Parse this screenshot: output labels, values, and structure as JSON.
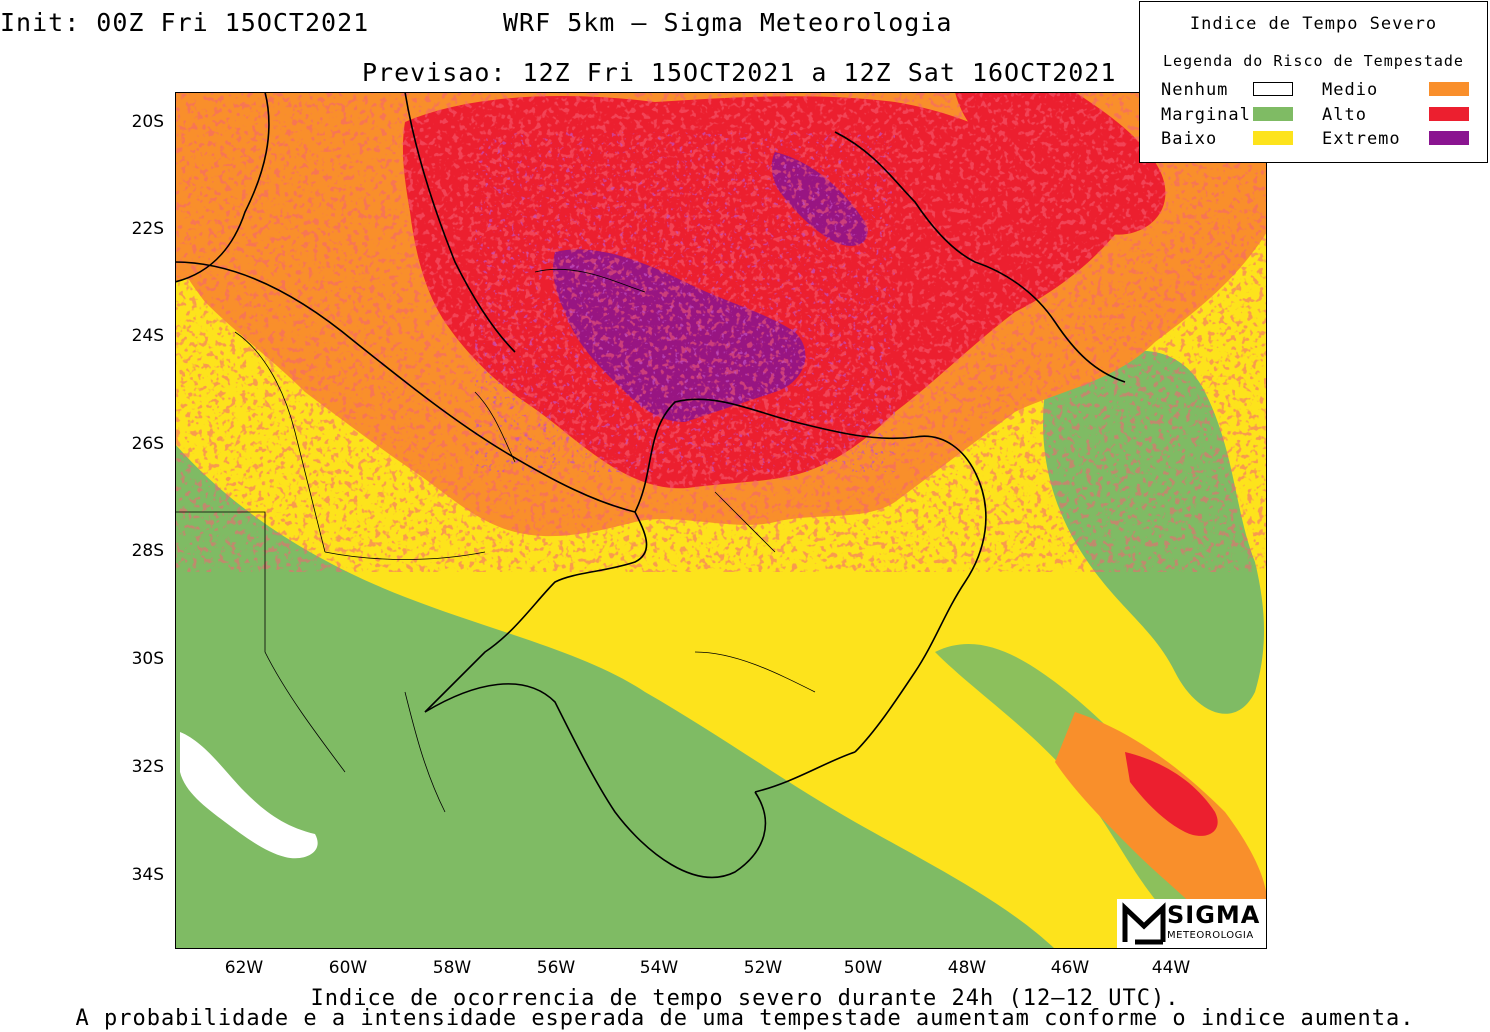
{
  "header": {
    "init": "Init: 00Z Fri 15OCT2021",
    "model": "WRF 5km – Sigma Meteorologia",
    "forecast": "Previsao: 12Z Fri 15OCT2021 a 12Z Sat 16OCT2021"
  },
  "axes": {
    "lat_labels": [
      "20S",
      "22S",
      "24S",
      "26S",
      "28S",
      "30S",
      "32S",
      "34S"
    ],
    "lon_labels": [
      "62W",
      "60W",
      "58W",
      "56W",
      "54W",
      "52W",
      "50W",
      "48W",
      "46W",
      "44W"
    ]
  },
  "legend": {
    "title": "Indice de Tempo Severo",
    "subtitle": "Legenda do Risco de Tempestade",
    "items": [
      {
        "label": "Nenhum",
        "color": "#ffffff"
      },
      {
        "label": "Marginal",
        "color": "#7fbb64"
      },
      {
        "label": "Baixo",
        "color": "#fde31c"
      },
      {
        "label": "Medio",
        "color": "#f98f2b"
      },
      {
        "label": "Alto",
        "color": "#ec1f2f"
      },
      {
        "label": "Extremo",
        "color": "#8a1490"
      }
    ]
  },
  "footer": {
    "line1": "Indice de ocorrencia de tempo severo durante 24h (12–12 UTC).",
    "line2": "A probabilidade e a intensidade esperada de uma tempestade aumentam conforme o indice aumenta."
  },
  "logo": {
    "name": "SIGMA",
    "sub": "METEOROLOGIA"
  }
}
